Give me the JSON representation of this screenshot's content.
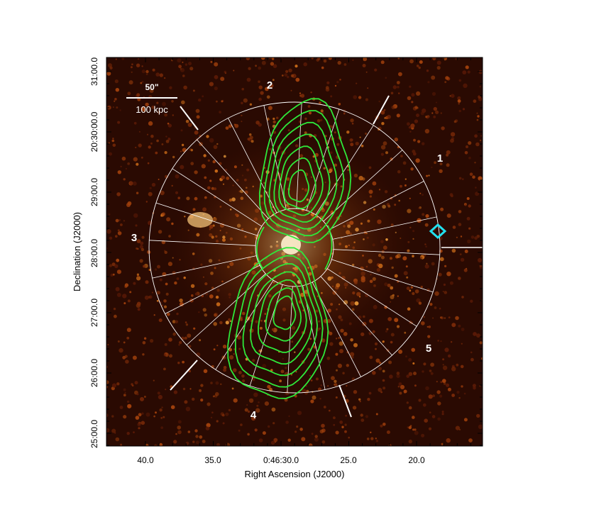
{
  "figure": {
    "x_axis_label": "Right Ascension (J2000)",
    "y_axis_label": "Declination (J2000)",
    "x_tick_labels": [
      "40.0",
      "35.0",
      "0:46:30.0",
      "25.0",
      "20.0"
    ],
    "y_tick_labels": [
      "31:00.0",
      "20:30:00.0",
      "29:00.0",
      "28:00.0",
      "27:00.0",
      "26:00.0",
      "25:00.0"
    ],
    "scale_bar": {
      "angular_label": "50\"",
      "physical_label": "100 kpc"
    },
    "sector_labels": [
      "1",
      "2",
      "3",
      "4",
      "5"
    ],
    "colors": {
      "background": "#2a0a02",
      "contour": "#2ee83a",
      "overlay_lines": "#ffffff",
      "marker": "#22e0ee",
      "annotation_text": "#ffffff"
    },
    "contour_levels": 7,
    "radial_spokes": 24,
    "marker_shape": "diamond"
  }
}
